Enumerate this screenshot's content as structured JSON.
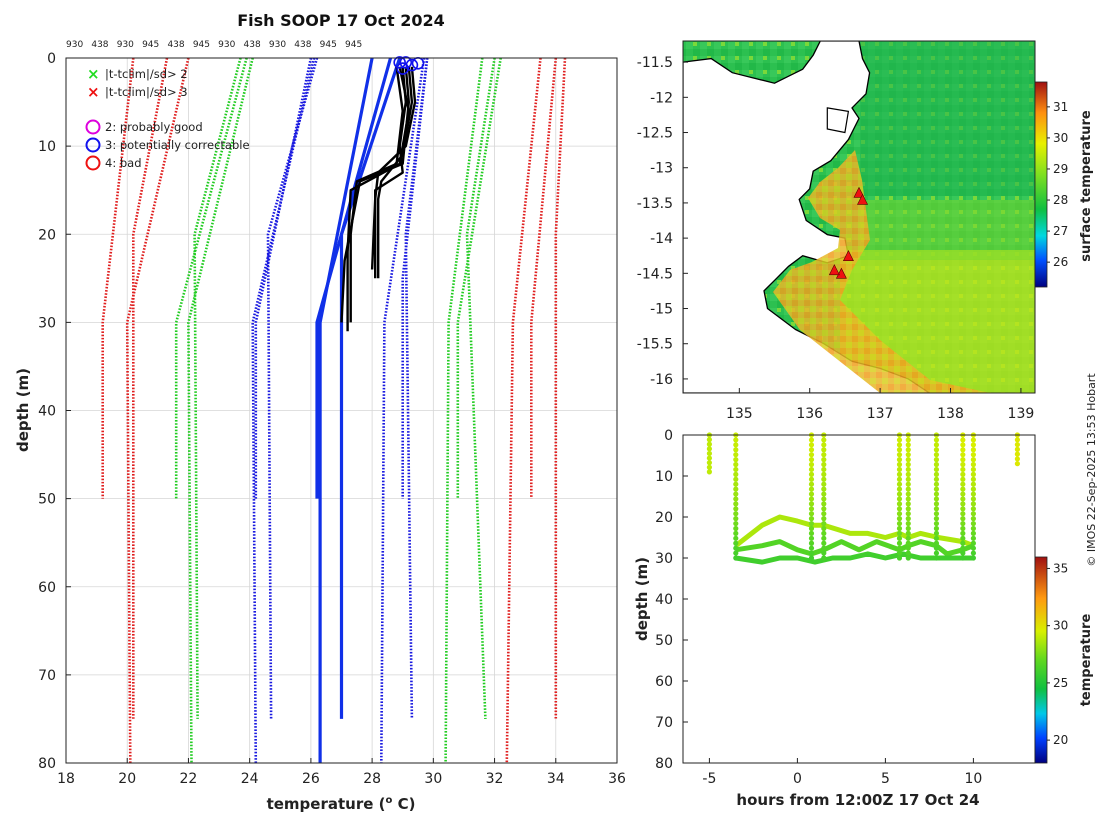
{
  "page": {
    "title": "Fish SOOP 17 Oct 2024",
    "credit": "© IMOS 22-Sep-2025 13:53 Hobart",
    "colors": {
      "accent_blue": "#1030e8",
      "black": "#000000",
      "land_edge": "#000000"
    }
  },
  "chart_data": [
    {
      "id": "profile",
      "type": "line",
      "title": "Fish SOOP 17 Oct 2024",
      "xlabel": "temperature (",
      "xlabel_sup": "o",
      "xlabel_end": " C)",
      "ylabel": "depth (m)",
      "xlim": [
        18,
        36
      ],
      "ylim": [
        0,
        80
      ],
      "xticks": [
        "18",
        "20",
        "22",
        "24",
        "26",
        "28",
        "30",
        "32",
        "34",
        "36"
      ],
      "yticks": [
        "0",
        "10",
        "20",
        "30",
        "40",
        "50",
        "60",
        "70",
        "80"
      ],
      "top_labels": [
        "930",
        "438",
        "930",
        "945",
        "438",
        "945",
        "930",
        "438",
        "930",
        "438",
        "945",
        "945"
      ],
      "legend": {
        "markers": [
          {
            "symbol": "×",
            "label": "|t-tclim|/sd> 2",
            "color": "#22dd22"
          },
          {
            "symbol": "×",
            "label": "|t-tclim|/sd> 3",
            "color": "#ee1111"
          }
        ],
        "flags": [
          {
            "label": "2: probably good",
            "color": "#dd00dd"
          },
          {
            "label": "3: potentially correctable",
            "color": "#1111ee"
          },
          {
            "label": "4: bad",
            "color": "#ee1111"
          }
        ]
      },
      "series": [
        {
          "name": "clim-3sd-a",
          "style": "dotted",
          "color": "#e02020",
          "x": [
            20.2,
            19.2,
            19.2
          ],
          "depth": [
            0,
            30,
            50
          ]
        },
        {
          "name": "clim-3sd-b",
          "style": "dotted",
          "color": "#e02020",
          "x": [
            21.3,
            20.2,
            20.2
          ],
          "depth": [
            0,
            20,
            75
          ]
        },
        {
          "name": "clim-3sd-c",
          "style": "dotted",
          "color": "#e02020",
          "x": [
            22.0,
            20.0,
            20.1
          ],
          "depth": [
            0,
            30,
            80
          ]
        },
        {
          "name": "clim-2sd-a",
          "style": "dotted",
          "color": "#22cc22",
          "x": [
            23.7,
            22.2,
            22.3
          ],
          "depth": [
            0,
            20,
            75
          ]
        },
        {
          "name": "clim-2sd-b",
          "style": "dotted",
          "color": "#22cc22",
          "x": [
            23.9,
            21.6,
            21.6
          ],
          "depth": [
            0,
            30,
            50
          ]
        },
        {
          "name": "clim-2sd-c",
          "style": "dotted",
          "color": "#22cc22",
          "x": [
            24.1,
            22.0,
            22.1
          ],
          "depth": [
            0,
            30,
            80
          ]
        },
        {
          "name": "clim-sd-a",
          "style": "dotted",
          "color": "#1a1ae0",
          "x": [
            26.0,
            24.2,
            24.2
          ],
          "depth": [
            0,
            30,
            50
          ]
        },
        {
          "name": "clim-sd-b",
          "style": "dotted",
          "color": "#1a1ae0",
          "x": [
            26.2,
            24.6,
            24.7
          ],
          "depth": [
            0,
            20,
            75
          ]
        },
        {
          "name": "clim-sd-c",
          "style": "dotted",
          "color": "#1a1ae0",
          "x": [
            26.1,
            24.1,
            24.2
          ],
          "depth": [
            0,
            30,
            80
          ]
        },
        {
          "name": "clim-sd-d",
          "style": "dotted",
          "color": "#1a1ae0",
          "x": [
            29.7,
            28.4,
            28.3
          ],
          "depth": [
            0,
            30,
            80
          ]
        },
        {
          "name": "clim-sd-e",
          "style": "dotted",
          "color": "#1a1ae0",
          "x": [
            29.8,
            29.1,
            29.3
          ],
          "depth": [
            0,
            20,
            75
          ]
        },
        {
          "name": "clim-sd-f",
          "style": "dotted",
          "color": "#1a1ae0",
          "x": [
            29.8,
            29.0,
            29.0
          ],
          "depth": [
            0,
            25,
            50
          ]
        },
        {
          "name": "clim-2sd-d",
          "style": "dotted",
          "color": "#22cc22",
          "x": [
            31.6,
            30.5,
            30.4
          ],
          "depth": [
            0,
            30,
            80
          ]
        },
        {
          "name": "clim-2sd-e",
          "style": "dotted",
          "color": "#22cc22",
          "x": [
            32.0,
            31.1,
            31.7
          ],
          "depth": [
            0,
            20,
            75
          ]
        },
        {
          "name": "clim-2sd-f",
          "style": "dotted",
          "color": "#22cc22",
          "x": [
            32.2,
            30.8,
            30.8
          ],
          "depth": [
            0,
            30,
            50
          ]
        },
        {
          "name": "clim-3sd-d",
          "style": "dotted",
          "color": "#e02020",
          "x": [
            33.5,
            32.6,
            32.4
          ],
          "depth": [
            0,
            30,
            80
          ]
        },
        {
          "name": "clim-3sd-e",
          "style": "dotted",
          "color": "#e02020",
          "x": [
            34.0,
            33.2,
            33.2
          ],
          "depth": [
            0,
            30,
            50
          ]
        },
        {
          "name": "clim-3sd-f",
          "style": "dotted",
          "color": "#e02020",
          "x": [
            34.3,
            34.0,
            34.0
          ],
          "depth": [
            0,
            20,
            75
          ]
        },
        {
          "name": "mean-clim-a",
          "style": "solid",
          "color": "#1030e8",
          "x": [
            28.0,
            26.3,
            26.3
          ],
          "depth": [
            0,
            30,
            80
          ]
        },
        {
          "name": "mean-clim-b",
          "style": "solid",
          "color": "#1030e8",
          "x": [
            28.9,
            27.0,
            27.0
          ],
          "depth": [
            0,
            20,
            75
          ]
        },
        {
          "name": "mean-clim-c",
          "style": "solid",
          "color": "#1030e8",
          "x": [
            28.6,
            26.2,
            26.2
          ],
          "depth": [
            0,
            30,
            50
          ]
        },
        {
          "name": "obs-profile-1",
          "style": "obs",
          "color": "#000000",
          "x": [
            29.0,
            29.1,
            28.9,
            29.0,
            28.1,
            28.1
          ],
          "depth": [
            1,
            5,
            10,
            13,
            15,
            25
          ]
        },
        {
          "name": "obs-profile-2",
          "style": "obs",
          "color": "#000000",
          "x": [
            29.2,
            29.3,
            29.0,
            28.3,
            28.2,
            28.2
          ],
          "depth": [
            1,
            5,
            11,
            14,
            16,
            25
          ]
        },
        {
          "name": "obs-profile-3",
          "style": "obs",
          "color": "#000000",
          "x": [
            28.8,
            29.0,
            28.8,
            27.5,
            27.3,
            27.3
          ],
          "depth": [
            1,
            6,
            12,
            14,
            20,
            30
          ]
        },
        {
          "name": "obs-profile-4",
          "style": "obs",
          "color": "#000000",
          "x": [
            28.9,
            29.2,
            28.9,
            27.3,
            27.2,
            27.2
          ],
          "depth": [
            1,
            6,
            12,
            15,
            22,
            31
          ]
        },
        {
          "name": "obs-profile-5",
          "style": "obs",
          "color": "#000000",
          "x": [
            29.1,
            29.2,
            29.0,
            27.6,
            27.1,
            27.0
          ],
          "depth": [
            1,
            5,
            12,
            14,
            23,
            30
          ]
        },
        {
          "name": "obs-profile-6",
          "style": "obs",
          "color": "#000000",
          "x": [
            29.3,
            29.4,
            29.1,
            28.2,
            28.1,
            28.0
          ],
          "depth": [
            1,
            5,
            10,
            13,
            16,
            24
          ]
        }
      ],
      "flagged_points": [
        {
          "x": 28.9,
          "depth": 0.5,
          "flag": 3
        },
        {
          "x": 29.1,
          "depth": 0.5,
          "flag": 3
        },
        {
          "x": 29.3,
          "depth": 0.8,
          "flag": 3
        },
        {
          "x": 29.5,
          "depth": 0.6,
          "flag": 3
        },
        {
          "x": 29.0,
          "depth": 1.2,
          "flag": 3
        }
      ]
    },
    {
      "id": "map",
      "type": "heatmap",
      "xlabel": "",
      "ylabel": "",
      "xlim": [
        134.2,
        139.2
      ],
      "ylim": [
        -16.2,
        -11.2
      ],
      "xticks": [
        "135",
        "136",
        "137",
        "138",
        "139"
      ],
      "xtick_values": [
        135,
        136,
        137,
        138,
        139
      ],
      "yticks": [
        "-11.5",
        "-12",
        "-12.5",
        "-13",
        "-13.5",
        "-14",
        "-14.5",
        "-15",
        "-15.5",
        "-16"
      ],
      "ytick_values": [
        -11.5,
        -12,
        -12.5,
        -13,
        -13.5,
        -14,
        -14.5,
        -15,
        -15.5,
        -16
      ],
      "colorbar": {
        "label": "surface temperature",
        "range": [
          25.2,
          31.8
        ],
        "ticks": [
          "26",
          "27",
          "28",
          "29",
          "30",
          "31"
        ],
        "tick_values": [
          26,
          27,
          28,
          29,
          30,
          31
        ]
      },
      "coast": [
        [
          134.2,
          -11.5
        ],
        [
          134.6,
          -11.45
        ],
        [
          134.9,
          -11.65
        ],
        [
          135.3,
          -11.75
        ],
        [
          135.5,
          -11.8
        ],
        [
          135.7,
          -11.7
        ],
        [
          135.9,
          -11.6
        ],
        [
          136.05,
          -11.4
        ],
        [
          136.15,
          -11.2
        ],
        [
          136.7,
          -11.2
        ],
        [
          136.75,
          -11.45
        ],
        [
          136.85,
          -11.65
        ],
        [
          136.8,
          -11.95
        ],
        [
          136.6,
          -12.15
        ],
        [
          136.7,
          -12.3
        ],
        [
          136.55,
          -12.6
        ],
        [
          136.3,
          -12.9
        ],
        [
          136.05,
          -13.05
        ],
        [
          136.0,
          -13.3
        ],
        [
          135.85,
          -13.45
        ],
        [
          135.95,
          -13.75
        ],
        [
          136.25,
          -13.95
        ],
        [
          136.5,
          -14.0
        ],
        [
          136.55,
          -14.25
        ],
        [
          136.25,
          -14.35
        ],
        [
          135.9,
          -14.25
        ],
        [
          135.7,
          -14.4
        ],
        [
          135.5,
          -14.6
        ],
        [
          135.35,
          -14.75
        ],
        [
          135.4,
          -15.0
        ],
        [
          135.8,
          -15.3
        ],
        [
          136.2,
          -15.5
        ],
        [
          136.6,
          -15.75
        ],
        [
          137.0,
          -15.85
        ],
        [
          137.4,
          -16.0
        ],
        [
          137.7,
          -16.2
        ],
        [
          134.2,
          -16.2
        ]
      ],
      "island": [
        [
          136.25,
          -12.15
        ],
        [
          136.55,
          -12.2
        ],
        [
          136.5,
          -12.5
        ],
        [
          136.25,
          -12.45
        ]
      ],
      "stations": [
        {
          "lon": 136.7,
          "lat": -13.35
        },
        {
          "lon": 136.75,
          "lat": -13.45
        },
        {
          "lon": 136.55,
          "lat": -14.25
        },
        {
          "lon": 136.45,
          "lat": -14.5
        },
        {
          "lon": 136.35,
          "lat": -14.45
        }
      ]
    },
    {
      "id": "timeseries",
      "type": "scatter",
      "xlabel": "hours from 12:00Z 17 Oct 24",
      "ylabel": "depth (m)",
      "xlim": [
        -6.5,
        13.5
      ],
      "ylim": [
        0,
        80
      ],
      "xticks": [
        "-5",
        "0",
        "5",
        "10"
      ],
      "xtick_values": [
        -5,
        0,
        5,
        10
      ],
      "yticks": [
        "0",
        "10",
        "20",
        "30",
        "40",
        "50",
        "60",
        "70",
        "80"
      ],
      "ytick_values": [
        0,
        10,
        20,
        30,
        40,
        50,
        60,
        70,
        80
      ],
      "colorbar": {
        "label": "temperature",
        "range": [
          18,
          36
        ],
        "ticks": [
          "20",
          "25",
          "30",
          "35"
        ],
        "tick_values": [
          20,
          25,
          30,
          35
        ]
      },
      "casts": [
        {
          "t": -5.0,
          "max_depth": 9,
          "t_surface": 29.0,
          "t_deep": 29.0
        },
        {
          "t": -3.5,
          "max_depth": 30,
          "t_surface": 29.2,
          "t_deep": 26.0
        },
        {
          "t": 0.8,
          "max_depth": 30,
          "t_surface": 29.4,
          "t_deep": 26.0
        },
        {
          "t": 1.5,
          "max_depth": 30,
          "t_surface": 29.1,
          "t_deep": 26.2
        },
        {
          "t": 5.8,
          "max_depth": 30,
          "t_surface": 29.3,
          "t_deep": 26.3
        },
        {
          "t": 6.3,
          "max_depth": 30,
          "t_surface": 29.3,
          "t_deep": 26.3
        },
        {
          "t": 7.9,
          "max_depth": 30,
          "t_surface": 29.1,
          "t_deep": 26.0
        },
        {
          "t": 9.4,
          "max_depth": 30,
          "t_surface": 29.6,
          "t_deep": 26.0
        },
        {
          "t": 10.0,
          "max_depth": 30,
          "t_surface": 29.6,
          "t_deep": 26.0
        },
        {
          "t": 12.5,
          "max_depth": 7,
          "t_surface": 29.8,
          "t_deep": 29.8
        }
      ],
      "traces": [
        {
          "name": "upper-trace",
          "temp": 28.6,
          "t": [
            -3.5,
            -2,
            -1,
            0,
            0.8,
            1.5,
            3,
            4,
            5,
            5.8,
            6.3,
            7,
            8,
            9.4,
            10
          ],
          "depth": [
            27,
            22,
            20,
            21,
            22,
            22,
            24,
            24,
            25,
            24,
            25,
            24,
            25,
            26,
            27
          ]
        },
        {
          "name": "mid-trace",
          "temp": 26.6,
          "t": [
            -3.5,
            -2,
            -1,
            0,
            0.8,
            1.5,
            2.5,
            3.5,
            4.5,
            5.8,
            6.3,
            7,
            7.9,
            8.5,
            9.4,
            10
          ],
          "depth": [
            28,
            27,
            26,
            28,
            29,
            28,
            26,
            28,
            26,
            28,
            27,
            26,
            27,
            29,
            28,
            27
          ]
        },
        {
          "name": "lower-trace",
          "temp": 26.0,
          "t": [
            -3.5,
            -2,
            -1,
            0,
            1,
            2,
            3,
            4,
            5,
            6,
            7,
            8,
            9,
            10
          ],
          "depth": [
            30,
            31,
            30,
            30,
            31,
            30,
            30,
            29,
            30,
            29,
            30,
            30,
            30,
            30
          ]
        }
      ]
    }
  ]
}
